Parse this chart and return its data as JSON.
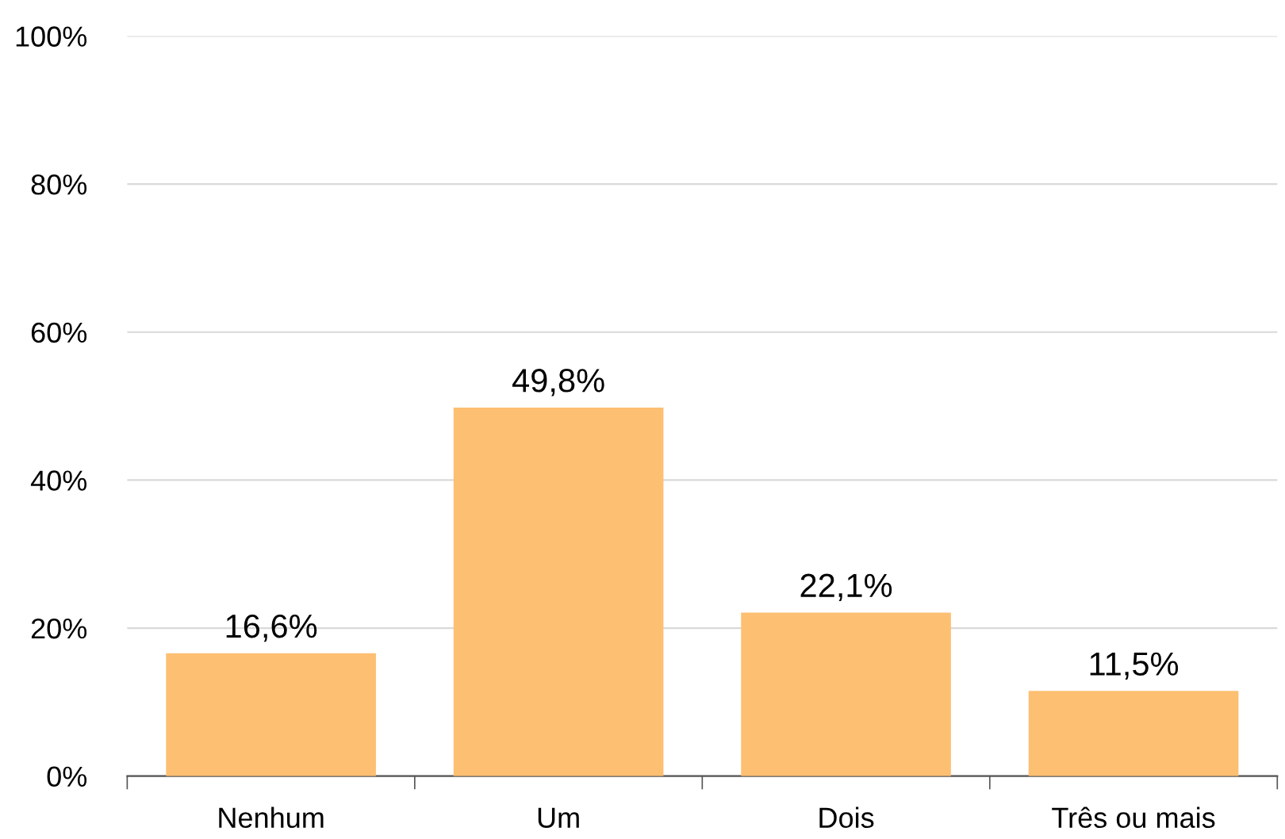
{
  "chart_data": {
    "type": "bar",
    "categories": [
      "Nenhum",
      "Um",
      "Dois",
      "Três ou mais"
    ],
    "values": [
      16.6,
      49.8,
      22.1,
      11.5
    ],
    "value_labels": [
      "16,6%",
      "49,8%",
      "22,1%",
      "11,5%"
    ],
    "color": "#fdbf72",
    "ylim": [
      0,
      100
    ],
    "yticks": [
      {
        "value": 0,
        "label": "0%"
      },
      {
        "value": 20,
        "label": "20%"
      },
      {
        "value": 40,
        "label": "40%"
      },
      {
        "value": 60,
        "label": "60%"
      },
      {
        "value": 80,
        "label": "80%"
      },
      {
        "value": 100,
        "label": "100%"
      }
    ],
    "grid": "y",
    "legend": false
  }
}
